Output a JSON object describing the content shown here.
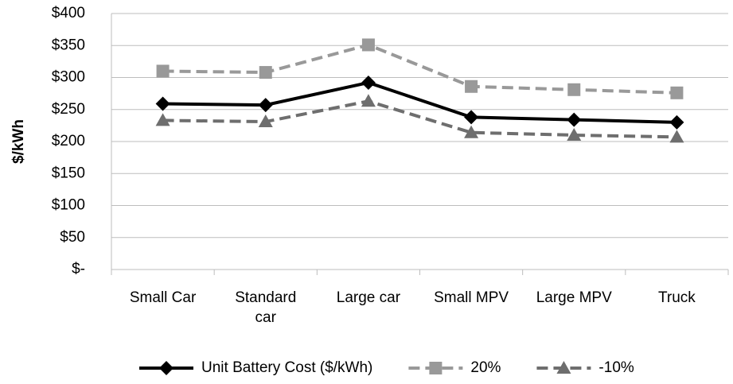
{
  "chart_data": {
    "type": "line",
    "ylabel": "$/kWh",
    "categories": [
      "Small Car",
      "Standard\ncar",
      "Large car",
      "Small MPV",
      "Large MPV",
      "Truck"
    ],
    "series": [
      {
        "name": "Unit Battery Cost ($/kWh)",
        "color": "#000000",
        "line_style": "solid",
        "marker": "diamond",
        "values": [
          259,
          257,
          292,
          238,
          234,
          230
        ]
      },
      {
        "name": "20%",
        "color": "#999999",
        "line_style": "dashed",
        "marker": "square",
        "values": [
          310,
          308,
          351,
          286,
          281,
          276
        ]
      },
      {
        "name": "-10%",
        "color": "#6e6e6e",
        "line_style": "dashed",
        "marker": "triangle",
        "values": [
          233,
          231,
          263,
          214,
          210,
          207
        ]
      }
    ],
    "ylim": [
      0,
      400
    ],
    "yticks": [
      {
        "value": 0,
        "label": "$-"
      },
      {
        "value": 50,
        "label": "$50"
      },
      {
        "value": 100,
        "label": "$100"
      },
      {
        "value": 150,
        "label": "$150"
      },
      {
        "value": 200,
        "label": "$200"
      },
      {
        "value": 250,
        "label": "$250"
      },
      {
        "value": 300,
        "label": "$300"
      },
      {
        "value": 350,
        "label": "$350"
      },
      {
        "value": 400,
        "label": "$400"
      }
    ],
    "grid": true,
    "legend": "bottom"
  }
}
